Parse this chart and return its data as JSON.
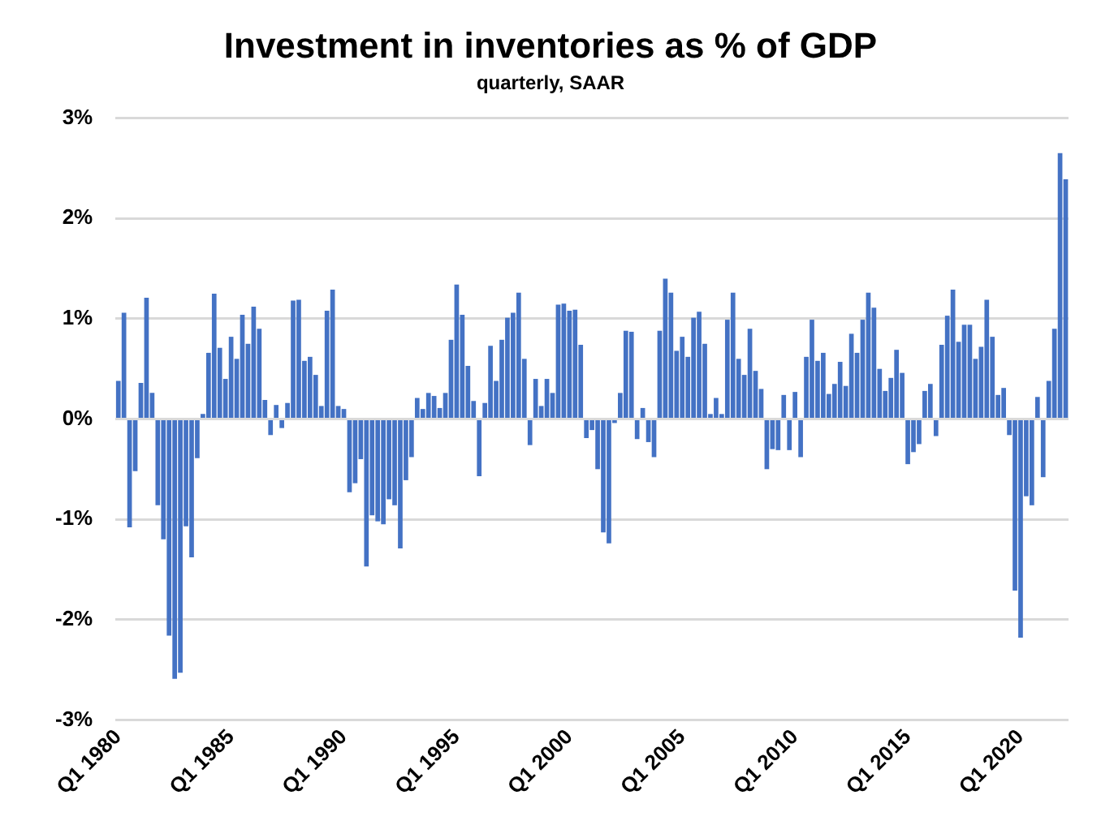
{
  "chart_data": {
    "type": "bar",
    "title": "Investment in inventories as % of GDP",
    "subtitle": "quarterly, SAAR",
    "categories": [
      "Q1 1980",
      null,
      null,
      null,
      null,
      null,
      null,
      null,
      null,
      null,
      null,
      null,
      null,
      null,
      null,
      null,
      null,
      null,
      null,
      null,
      "Q1 1985",
      null,
      null,
      null,
      null,
      null,
      null,
      null,
      null,
      null,
      null,
      null,
      null,
      null,
      null,
      null,
      null,
      null,
      null,
      null,
      "Q1 1990",
      null,
      null,
      null,
      null,
      null,
      null,
      null,
      null,
      null,
      null,
      null,
      null,
      null,
      null,
      null,
      null,
      null,
      null,
      null,
      "Q1 1995",
      null,
      null,
      null,
      null,
      null,
      null,
      null,
      null,
      null,
      null,
      null,
      null,
      null,
      null,
      null,
      null,
      null,
      null,
      null,
      "Q1 2000",
      null,
      null,
      null,
      null,
      null,
      null,
      null,
      null,
      null,
      null,
      null,
      null,
      null,
      null,
      null,
      null,
      null,
      null,
      null,
      "Q1 2005",
      null,
      null,
      null,
      null,
      null,
      null,
      null,
      null,
      null,
      null,
      null,
      null,
      null,
      null,
      null,
      null,
      null,
      null,
      null,
      "Q1 2010",
      null,
      null,
      null,
      null,
      null,
      null,
      null,
      null,
      null,
      null,
      null,
      null,
      null,
      null,
      null,
      null,
      null,
      null,
      null,
      "Q1 2015",
      null,
      null,
      null,
      null,
      null,
      null,
      null,
      null,
      null,
      null,
      null,
      null,
      null,
      null,
      null,
      null,
      null,
      null,
      null,
      "Q1 2020",
      null,
      null,
      null,
      null,
      null,
      null,
      null,
      null
    ],
    "values": [
      0.38,
      1.06,
      -1.08,
      -0.52,
      0.36,
      1.21,
      0.26,
      -0.86,
      -1.2,
      -2.16,
      -2.59,
      -2.53,
      -1.07,
      -1.38,
      -0.39,
      0.05,
      0.66,
      1.25,
      0.71,
      0.4,
      0.82,
      0.6,
      1.04,
      0.75,
      1.12,
      0.9,
      0.19,
      -0.16,
      0.14,
      -0.09,
      0.16,
      1.18,
      1.19,
      0.58,
      0.62,
      0.44,
      0.13,
      1.08,
      1.29,
      0.13,
      0.1,
      -0.73,
      -0.64,
      -0.4,
      -1.47,
      -0.96,
      -1.02,
      -1.05,
      -0.8,
      -0.86,
      -1.29,
      -0.61,
      -0.38,
      0.21,
      0.1,
      0.26,
      0.23,
      0.11,
      0.26,
      0.79,
      1.34,
      1.04,
      0.53,
      0.18,
      -0.57,
      0.16,
      0.73,
      0.38,
      0.79,
      1.01,
      1.06,
      1.26,
      0.6,
      -0.26,
      0.4,
      0.13,
      0.4,
      0.26,
      1.14,
      1.15,
      1.08,
      1.09,
      0.74,
      -0.19,
      -0.11,
      -0.5,
      -1.13,
      -1.24,
      -0.04,
      0.26,
      0.88,
      0.87,
      -0.2,
      0.11,
      -0.23,
      -0.38,
      0.88,
      1.4,
      1.26,
      0.68,
      0.82,
      0.62,
      1.01,
      1.07,
      0.75,
      0.05,
      0.21,
      0.05,
      0.99,
      1.26,
      0.6,
      0.44,
      0.9,
      0.48,
      0.3,
      -0.5,
      -0.3,
      -0.31,
      0.24,
      -0.31,
      0.27,
      -0.38,
      0.62,
      0.99,
      0.58,
      0.66,
      0.25,
      0.35,
      0.57,
      0.33,
      0.85,
      0.66,
      0.99,
      1.26,
      1.11,
      0.5,
      0.28,
      0.41,
      0.69,
      0.46,
      -0.45,
      -0.33,
      -0.25,
      0.28,
      0.35,
      -0.17,
      0.74,
      1.03,
      1.29,
      0.77,
      0.94,
      0.94,
      0.6,
      0.72,
      1.19,
      0.82,
      0.24,
      0.31,
      -0.16,
      -1.71,
      -2.18,
      -0.77,
      -0.86,
      0.22,
      -0.58,
      0.38,
      0.9,
      2.65,
      2.39
    ],
    "color": "#4472c4",
    "ylim": [
      -3,
      3
    ],
    "yticks": [
      {
        "value": -3,
        "label": "-3%"
      },
      {
        "value": -2,
        "label": "-2%"
      },
      {
        "value": -1,
        "label": "-1%"
      },
      {
        "value": 0,
        "label": "0%"
      },
      {
        "value": 1,
        "label": "1%"
      },
      {
        "value": 2,
        "label": "2%"
      },
      {
        "value": 3,
        "label": "3%"
      }
    ],
    "grid": "y"
  }
}
